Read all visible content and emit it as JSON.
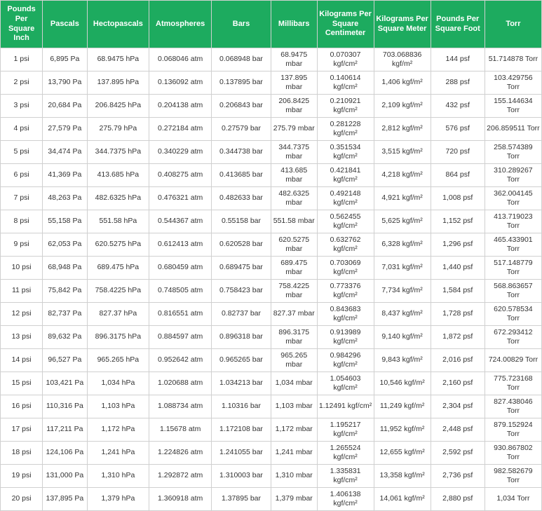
{
  "table": {
    "type": "table",
    "header_bg": "#1dab5f",
    "header_color": "#ffffff",
    "border_color": "#d0d0d0",
    "cell_color": "#333333",
    "columns": [
      "Pounds Per Square Inch",
      "Pascals",
      "Hectopascals",
      "Atmospheres",
      "Bars",
      "Millibars",
      "Kilograms Per Square Centimeter",
      "Kilograms Per Square Meter",
      "Pounds Per Square Foot",
      "Torr"
    ],
    "rows": [
      [
        "1 psi",
        "6,895 Pa",
        "68.9475 hPa",
        "0.068046 atm",
        "0.068948 bar",
        "68.9475 mbar",
        "0.070307 kgf/cm²",
        "703.068836 kgf/m²",
        "144 psf",
        "51.714878 Torr"
      ],
      [
        "2 psi",
        "13,790 Pa",
        "137.895 hPa",
        "0.136092 atm",
        "0.137895 bar",
        "137.895 mbar",
        "0.140614 kgf/cm²",
        "1,406 kgf/m²",
        "288 psf",
        "103.429756 Torr"
      ],
      [
        "3 psi",
        "20,684 Pa",
        "206.8425 hPa",
        "0.204138 atm",
        "0.206843 bar",
        "206.8425 mbar",
        "0.210921 kgf/cm²",
        "2,109 kgf/m²",
        "432 psf",
        "155.144634 Torr"
      ],
      [
        "4 psi",
        "27,579 Pa",
        "275.79 hPa",
        "0.272184 atm",
        "0.27579 bar",
        "275.79 mbar",
        "0.281228 kgf/cm²",
        "2,812 kgf/m²",
        "576 psf",
        "206.859511 Torr"
      ],
      [
        "5 psi",
        "34,474 Pa",
        "344.7375 hPa",
        "0.340229 atm",
        "0.344738 bar",
        "344.7375 mbar",
        "0.351534 kgf/cm²",
        "3,515 kgf/m²",
        "720 psf",
        "258.574389 Torr"
      ],
      [
        "6 psi",
        "41,369 Pa",
        "413.685 hPa",
        "0.408275 atm",
        "0.413685 bar",
        "413.685 mbar",
        "0.421841 kgf/cm²",
        "4,218 kgf/m²",
        "864 psf",
        "310.289267 Torr"
      ],
      [
        "7 psi",
        "48,263 Pa",
        "482.6325 hPa",
        "0.476321 atm",
        "0.482633 bar",
        "482.6325 mbar",
        "0.492148 kgf/cm²",
        "4,921 kgf/m²",
        "1,008 psf",
        "362.004145 Torr"
      ],
      [
        "8 psi",
        "55,158 Pa",
        "551.58 hPa",
        "0.544367 atm",
        "0.55158 bar",
        "551.58 mbar",
        "0.562455 kgf/cm²",
        "5,625 kgf/m²",
        "1,152 psf",
        "413.719023 Torr"
      ],
      [
        "9 psi",
        "62,053 Pa",
        "620.5275 hPa",
        "0.612413 atm",
        "0.620528 bar",
        "620.5275 mbar",
        "0.632762 kgf/cm²",
        "6,328 kgf/m²",
        "1,296 psf",
        "465.433901 Torr"
      ],
      [
        "10 psi",
        "68,948 Pa",
        "689.475 hPa",
        "0.680459 atm",
        "0.689475 bar",
        "689.475 mbar",
        "0.703069 kgf/cm²",
        "7,031 kgf/m²",
        "1,440 psf",
        "517.148779 Torr"
      ],
      [
        "11 psi",
        "75,842 Pa",
        "758.4225 hPa",
        "0.748505 atm",
        "0.758423 bar",
        "758.4225 mbar",
        "0.773376 kgf/cm²",
        "7,734 kgf/m²",
        "1,584 psf",
        "568.863657 Torr"
      ],
      [
        "12 psi",
        "82,737 Pa",
        "827.37 hPa",
        "0.816551 atm",
        "0.82737 bar",
        "827.37 mbar",
        "0.843683 kgf/cm²",
        "8,437 kgf/m²",
        "1,728 psf",
        "620.578534 Torr"
      ],
      [
        "13 psi",
        "89,632 Pa",
        "896.3175 hPa",
        "0.884597 atm",
        "0.896318 bar",
        "896.3175 mbar",
        "0.913989 kgf/cm²",
        "9,140 kgf/m²",
        "1,872 psf",
        "672.293412 Torr"
      ],
      [
        "14 psi",
        "96,527 Pa",
        "965.265 hPa",
        "0.952642 atm",
        "0.965265 bar",
        "965.265 mbar",
        "0.984296 kgf/cm²",
        "9,843 kgf/m²",
        "2,016 psf",
        "724.00829 Torr"
      ],
      [
        "15 psi",
        "103,421 Pa",
        "1,034 hPa",
        "1.020688 atm",
        "1.034213 bar",
        "1,034 mbar",
        "1.054603 kgf/cm²",
        "10,546 kgf/m²",
        "2,160 psf",
        "775.723168 Torr"
      ],
      [
        "16 psi",
        "110,316 Pa",
        "1,103 hPa",
        "1.088734 atm",
        "1.10316 bar",
        "1,103 mbar",
        "1.12491 kgf/cm²",
        "11,249 kgf/m²",
        "2,304 psf",
        "827.438046 Torr"
      ],
      [
        "17 psi",
        "117,211 Pa",
        "1,172 hPa",
        "1.15678 atm",
        "1.172108 bar",
        "1,172 mbar",
        "1.195217 kgf/cm²",
        "11,952 kgf/m²",
        "2,448 psf",
        "879.152924 Torr"
      ],
      [
        "18 psi",
        "124,106 Pa",
        "1,241 hPa",
        "1.224826 atm",
        "1.241055 bar",
        "1,241 mbar",
        "1.265524 kgf/cm²",
        "12,655 kgf/m²",
        "2,592 psf",
        "930.867802 Torr"
      ],
      [
        "19 psi",
        "131,000 Pa",
        "1,310 hPa",
        "1.292872 atm",
        "1.310003 bar",
        "1,310 mbar",
        "1.335831 kgf/cm²",
        "13,358 kgf/m²",
        "2,736 psf",
        "982.582679 Torr"
      ],
      [
        "20 psi",
        "137,895 Pa",
        "1,379 hPa",
        "1.360918 atm",
        "1.37895 bar",
        "1,379 mbar",
        "1.406138 kgf/cm²",
        "14,061 kgf/m²",
        "2,880 psf",
        "1,034 Torr"
      ]
    ]
  }
}
